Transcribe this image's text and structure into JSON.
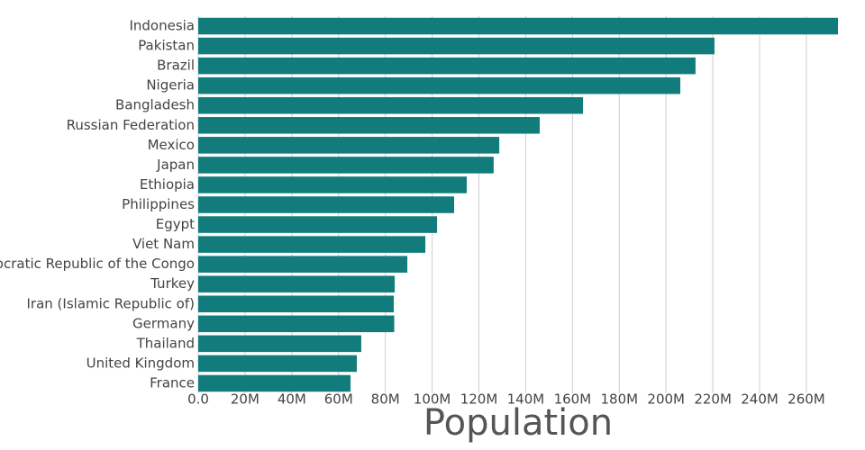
{
  "chart_data": {
    "type": "barh",
    "x_label": "Population",
    "color": "#127c7c",
    "grid": true,
    "categories": [
      "Indonesia",
      "Pakistan",
      "Brazil",
      "Nigeria",
      "Bangladesh",
      "Russian Federation",
      "Mexico",
      "Japan",
      "Ethiopia",
      "Philippines",
      "Egypt",
      "Viet Nam",
      "Democratic Republic of the Congo",
      "Turkey",
      "Iran (Islamic Republic of)",
      "Germany",
      "Thailand",
      "United Kingdom",
      "France"
    ],
    "values": [
      273500000,
      220700000,
      212600000,
      206100000,
      164500000,
      146000000,
      128700000,
      126300000,
      114800000,
      109400000,
      102100000,
      97100000,
      89400000,
      84000000,
      83600000,
      83800000,
      69700000,
      67800000,
      65100000
    ],
    "xlim": [
      0,
      273500000
    ],
    "xticks": [
      {
        "value": 0,
        "label": "0.0"
      },
      {
        "value": 20000000,
        "label": "20M"
      },
      {
        "value": 40000000,
        "label": "40M"
      },
      {
        "value": 60000000,
        "label": "60M"
      },
      {
        "value": 80000000,
        "label": "80M"
      },
      {
        "value": 100000000,
        "label": "100M"
      },
      {
        "value": 120000000,
        "label": "120M"
      },
      {
        "value": 140000000,
        "label": "140M"
      },
      {
        "value": 160000000,
        "label": "160M"
      },
      {
        "value": 180000000,
        "label": "180M"
      },
      {
        "value": 200000000,
        "label": "200M"
      },
      {
        "value": 220000000,
        "label": "220M"
      },
      {
        "value": 240000000,
        "label": "240M"
      },
      {
        "value": 260000000,
        "label": "260M"
      }
    ]
  }
}
